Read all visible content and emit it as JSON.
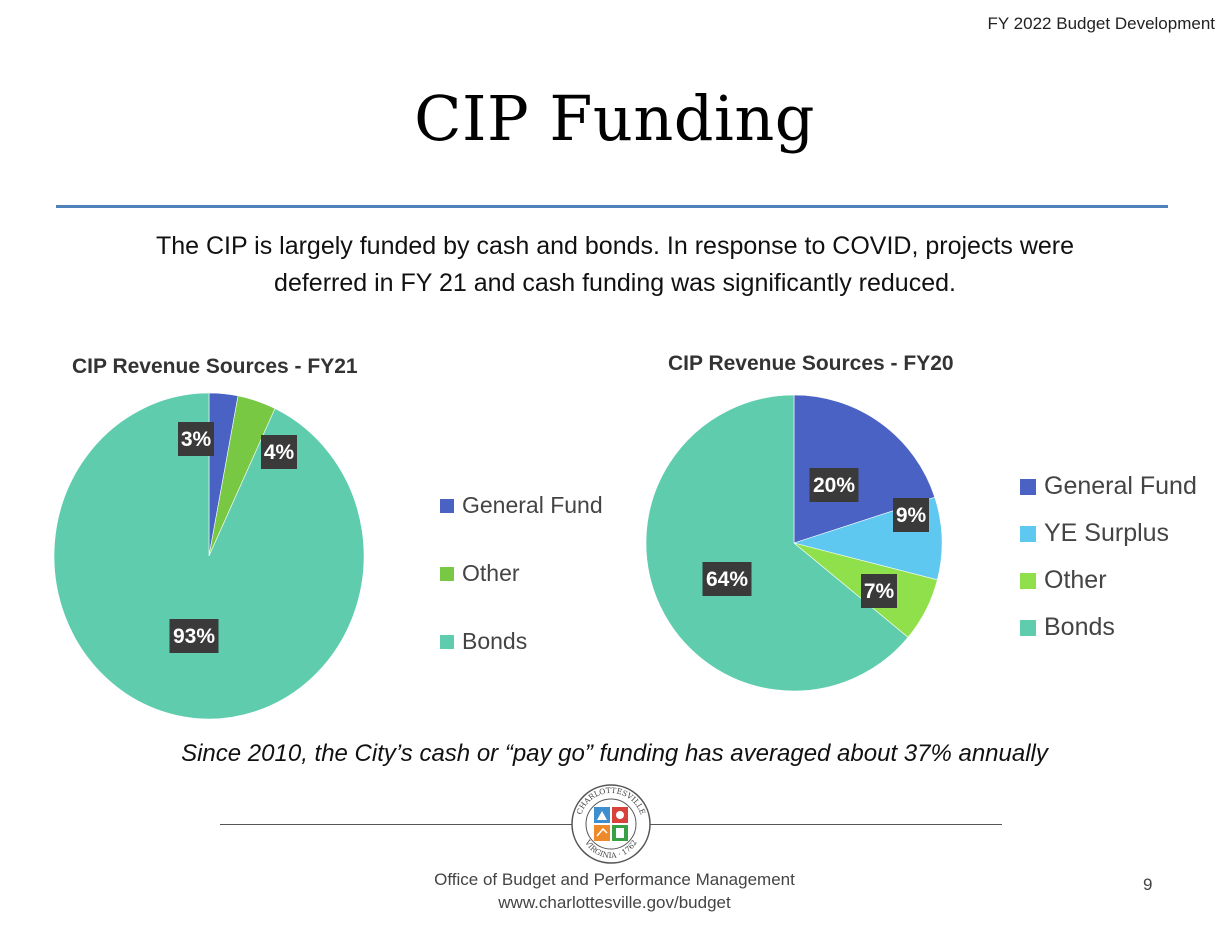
{
  "header": {
    "tag": "FY 2022 Budget Development",
    "title": "CIP Funding"
  },
  "intro": {
    "line1": "The CIP is largely funded by cash and bonds.  In response to COVID, projects were",
    "line2": "deferred  in FY 21  and cash funding was significantly reduced."
  },
  "chart_data": [
    {
      "type": "pie",
      "title": "CIP Revenue Sources - FY21",
      "categories": [
        "General Fund",
        "Other",
        "Bonds"
      ],
      "values": [
        3,
        4,
        93
      ],
      "data_labels": [
        "3%",
        "4%",
        "93%"
      ],
      "colors": [
        "#4a62c4",
        "#79c843",
        "#5fcdad"
      ],
      "legend_placement": "right"
    },
    {
      "type": "pie",
      "title": "CIP Revenue Sources - FY20",
      "categories": [
        "General Fund",
        "YE Surplus",
        "Other",
        "Bonds"
      ],
      "values": [
        20,
        9,
        7,
        64
      ],
      "data_labels": [
        "20%",
        "9%",
        "7%",
        "64%"
      ],
      "colors": [
        "#4a62c4",
        "#5ec8f0",
        "#8fe04a",
        "#5fcdad"
      ],
      "legend_placement": "right"
    }
  ],
  "note": "Since 2010, the City’s  cash or “pay go” funding has averaged about 37% annually",
  "footer": {
    "office": "Office of Budget and Performance Management",
    "url": "www.charlottesville.gov/budget",
    "page_number": "9",
    "seal_top_text": "CHARLOTTESVILLE",
    "seal_bottom_text": "VIRGINIA · 1762"
  },
  "colors": {
    "title_rule": "#4f81bd",
    "label_box": "#3a3a3a"
  }
}
